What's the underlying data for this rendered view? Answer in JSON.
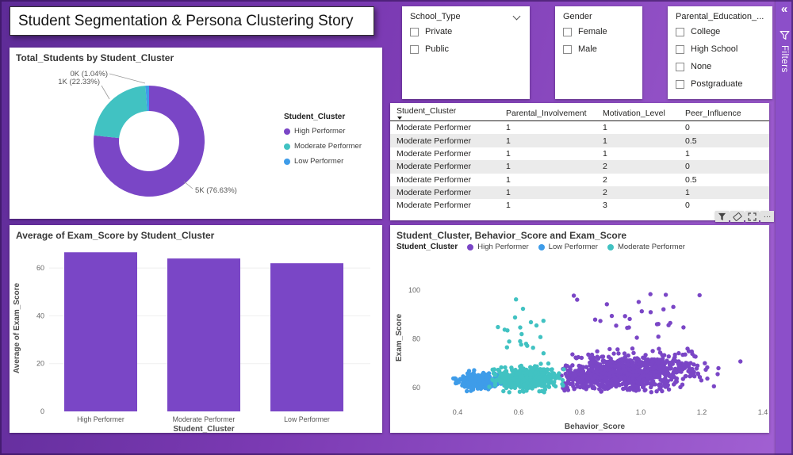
{
  "page_title": "Student Segmentation & Persona Clustering Story",
  "filters_pane": {
    "label": "Filters"
  },
  "icons": {
    "filters_collapse": "«",
    "more_options": "…"
  },
  "toolbar_icons": [
    "filter-icon",
    "eraser-icon",
    "focus-mode-icon",
    "more-options-icon"
  ],
  "colors": {
    "purple": "#7a46c6",
    "teal": "#41c2c2",
    "blue": "#3e9ce9",
    "background_dark": "#5e2b97",
    "background_light": "#a261d3"
  },
  "slicers": [
    {
      "title": "School_Type",
      "items": [
        "Private",
        "Public"
      ]
    },
    {
      "title": "Gender",
      "items": [
        "Female",
        "Male"
      ]
    },
    {
      "title": "Parental_Education_...",
      "items": [
        "College",
        "High School",
        "None",
        "Postgraduate"
      ]
    }
  ],
  "table": {
    "columns": [
      "Student_Cluster",
      "Parental_Involvement",
      "Motivation_Level",
      "Peer_Influence"
    ],
    "rows": [
      [
        "Moderate Performer",
        "1",
        "1",
        "0"
      ],
      [
        "Moderate Performer",
        "1",
        "1",
        "0.5"
      ],
      [
        "Moderate Performer",
        "1",
        "1",
        "1"
      ],
      [
        "Moderate Performer",
        "1",
        "2",
        "0"
      ],
      [
        "Moderate Performer",
        "1",
        "2",
        "0.5"
      ],
      [
        "Moderate Performer",
        "1",
        "2",
        "1"
      ],
      [
        "Moderate Performer",
        "1",
        "3",
        "0"
      ]
    ]
  },
  "chart_data": [
    {
      "type": "donut",
      "title": "Total_Students by Student_Cluster",
      "legend_title": "Student_Cluster",
      "categories": [
        "High Performer",
        "Moderate Performer",
        "Low Performer"
      ],
      "values": [
        76.63,
        22.33,
        1.04
      ],
      "labels": [
        "5K (76.63%)",
        "1K (22.33%)",
        "0K (1.04%)"
      ],
      "colors": [
        "#7a46c6",
        "#41c2c2",
        "#3e9ce9"
      ],
      "legend_position": "right"
    },
    {
      "type": "bar",
      "title": "Average of Exam_Score by Student_Cluster",
      "categories": [
        "High Performer",
        "Moderate Performer",
        "Low Performer"
      ],
      "values": [
        66.6,
        64,
        62
      ],
      "xlabel": "Student_Cluster",
      "ylabel": "Average of Exam_Score",
      "ylim": [
        0,
        70
      ],
      "yticks": [
        0,
        20,
        40,
        60
      ],
      "bar_color": "#7a46c6",
      "grid": true
    },
    {
      "type": "scatter",
      "title": "Student_Cluster, Behavior_Score and Exam_Score",
      "legend_title": "Student_Cluster",
      "xlabel": "Behavior_Score",
      "ylabel": "Exam_Score",
      "xlim": [
        0.3,
        1.4
      ],
      "xticks": [
        "0.4",
        "0.6",
        "0.8",
        "1.0",
        "1.2",
        "1.4"
      ],
      "ylim": [
        55,
        106
      ],
      "yticks": [
        60,
        80,
        100
      ],
      "legend_position": "top",
      "series": [
        {
          "name": "High Performer",
          "color": "#7a46c6",
          "clusters": [
            {
              "n": 1050,
              "cx": 0.95,
              "cy": 66,
              "sx": 0.115,
              "sy": 3.4,
              "xmin": 0.74,
              "xmax": 1.33,
              "ymin": 58,
              "ymax": 79,
              "slope": 6
            },
            {
              "n": 26,
              "cx": 1.0,
              "cy": 88,
              "sx": 0.13,
              "sy": 7,
              "xmin": 0.78,
              "xmax": 1.28,
              "ymin": 79,
              "ymax": 101,
              "slope": 0
            }
          ]
        },
        {
          "name": "Low Performer",
          "color": "#3e9ce9",
          "clusters": [
            {
              "n": 260,
              "cx": 0.47,
              "cy": 62.5,
              "sx": 0.034,
              "sy": 1.7,
              "xmin": 0.36,
              "xmax": 0.56,
              "ymin": 58.5,
              "ymax": 67.5,
              "slope": 0
            }
          ]
        },
        {
          "name": "Moderate Performer",
          "color": "#41c2c2",
          "clusters": [
            {
              "n": 480,
              "cx": 0.625,
              "cy": 63.5,
              "sx": 0.055,
              "sy": 2.3,
              "xmin": 0.5,
              "xmax": 0.76,
              "ymin": 58,
              "ymax": 71,
              "slope": 0
            },
            {
              "n": 20,
              "cx": 0.63,
              "cy": 80,
              "sx": 0.05,
              "sy": 8,
              "xmin": 0.52,
              "xmax": 0.74,
              "ymin": 71,
              "ymax": 97,
              "slope": 0
            }
          ]
        }
      ]
    }
  ]
}
